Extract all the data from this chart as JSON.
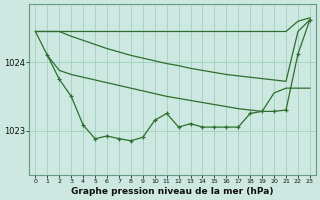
{
  "bg_color": "#cce8e0",
  "grid_color": "#99ccbb",
  "line_color": "#2d6e2d",
  "xlabel": "Graphe pression niveau de la mer (hPa)",
  "xticks": [
    0,
    1,
    2,
    3,
    4,
    5,
    6,
    7,
    8,
    9,
    10,
    11,
    12,
    13,
    14,
    15,
    16,
    17,
    18,
    19,
    20,
    21,
    22,
    23
  ],
  "ylim": [
    1022.35,
    1024.85
  ],
  "xlim": [
    -0.5,
    23.5
  ],
  "line_top_x": [
    0,
    1,
    2,
    3,
    4,
    5,
    6,
    7,
    8,
    9,
    10,
    11,
    12,
    13,
    14,
    15,
    16,
    17,
    18,
    19,
    20,
    21,
    22,
    23
  ],
  "line_top_y": [
    1024.45,
    1024.45,
    1024.45,
    1024.38,
    1024.32,
    1024.26,
    1024.2,
    1024.15,
    1024.1,
    1024.06,
    1024.02,
    1023.98,
    1023.95,
    1023.91,
    1023.88,
    1023.85,
    1023.82,
    1023.8,
    1023.78,
    1023.76,
    1023.74,
    1023.72,
    1024.45,
    1024.62
  ],
  "line_mid_x": [
    0,
    1,
    2,
    3,
    4,
    5,
    6,
    7,
    8,
    9,
    10,
    11,
    12,
    13,
    14,
    15,
    16,
    17,
    18,
    19,
    20,
    21,
    22,
    23
  ],
  "line_mid_y": [
    1024.45,
    1024.1,
    1023.88,
    1023.82,
    1023.78,
    1023.74,
    1023.7,
    1023.66,
    1023.62,
    1023.58,
    1023.54,
    1023.5,
    1023.47,
    1023.44,
    1023.41,
    1023.38,
    1023.35,
    1023.32,
    1023.3,
    1023.28,
    1023.55,
    1023.62,
    1023.62,
    1023.62
  ],
  "line_obs_x": [
    1,
    2,
    3,
    4,
    5,
    6,
    7,
    8,
    9,
    10,
    11,
    12,
    13,
    14,
    15,
    16,
    17,
    18,
    19,
    20,
    21,
    22,
    23
  ],
  "line_obs_y": [
    1024.1,
    1023.75,
    1023.5,
    1023.08,
    1022.88,
    1022.92,
    1022.88,
    1022.85,
    1022.9,
    1023.15,
    1023.25,
    1023.05,
    1023.1,
    1023.05,
    1023.05,
    1023.05,
    1023.05,
    1023.25,
    1023.28,
    1023.28,
    1023.3,
    1024.12,
    1024.62
  ],
  "line_flat_x": [
    0,
    1,
    2,
    3,
    4,
    5,
    6,
    7,
    8,
    9,
    10,
    11,
    12,
    13,
    14,
    15,
    16,
    17,
    18,
    19,
    20,
    21,
    22,
    23
  ],
  "line_flat_y": [
    1024.45,
    1024.45,
    1024.45,
    1024.45,
    1024.45,
    1024.45,
    1024.45,
    1024.45,
    1024.45,
    1024.45,
    1024.45,
    1024.45,
    1024.45,
    1024.45,
    1024.45,
    1024.45,
    1024.45,
    1024.45,
    1024.45,
    1024.45,
    1024.45,
    1024.45,
    1024.6,
    1024.65
  ]
}
